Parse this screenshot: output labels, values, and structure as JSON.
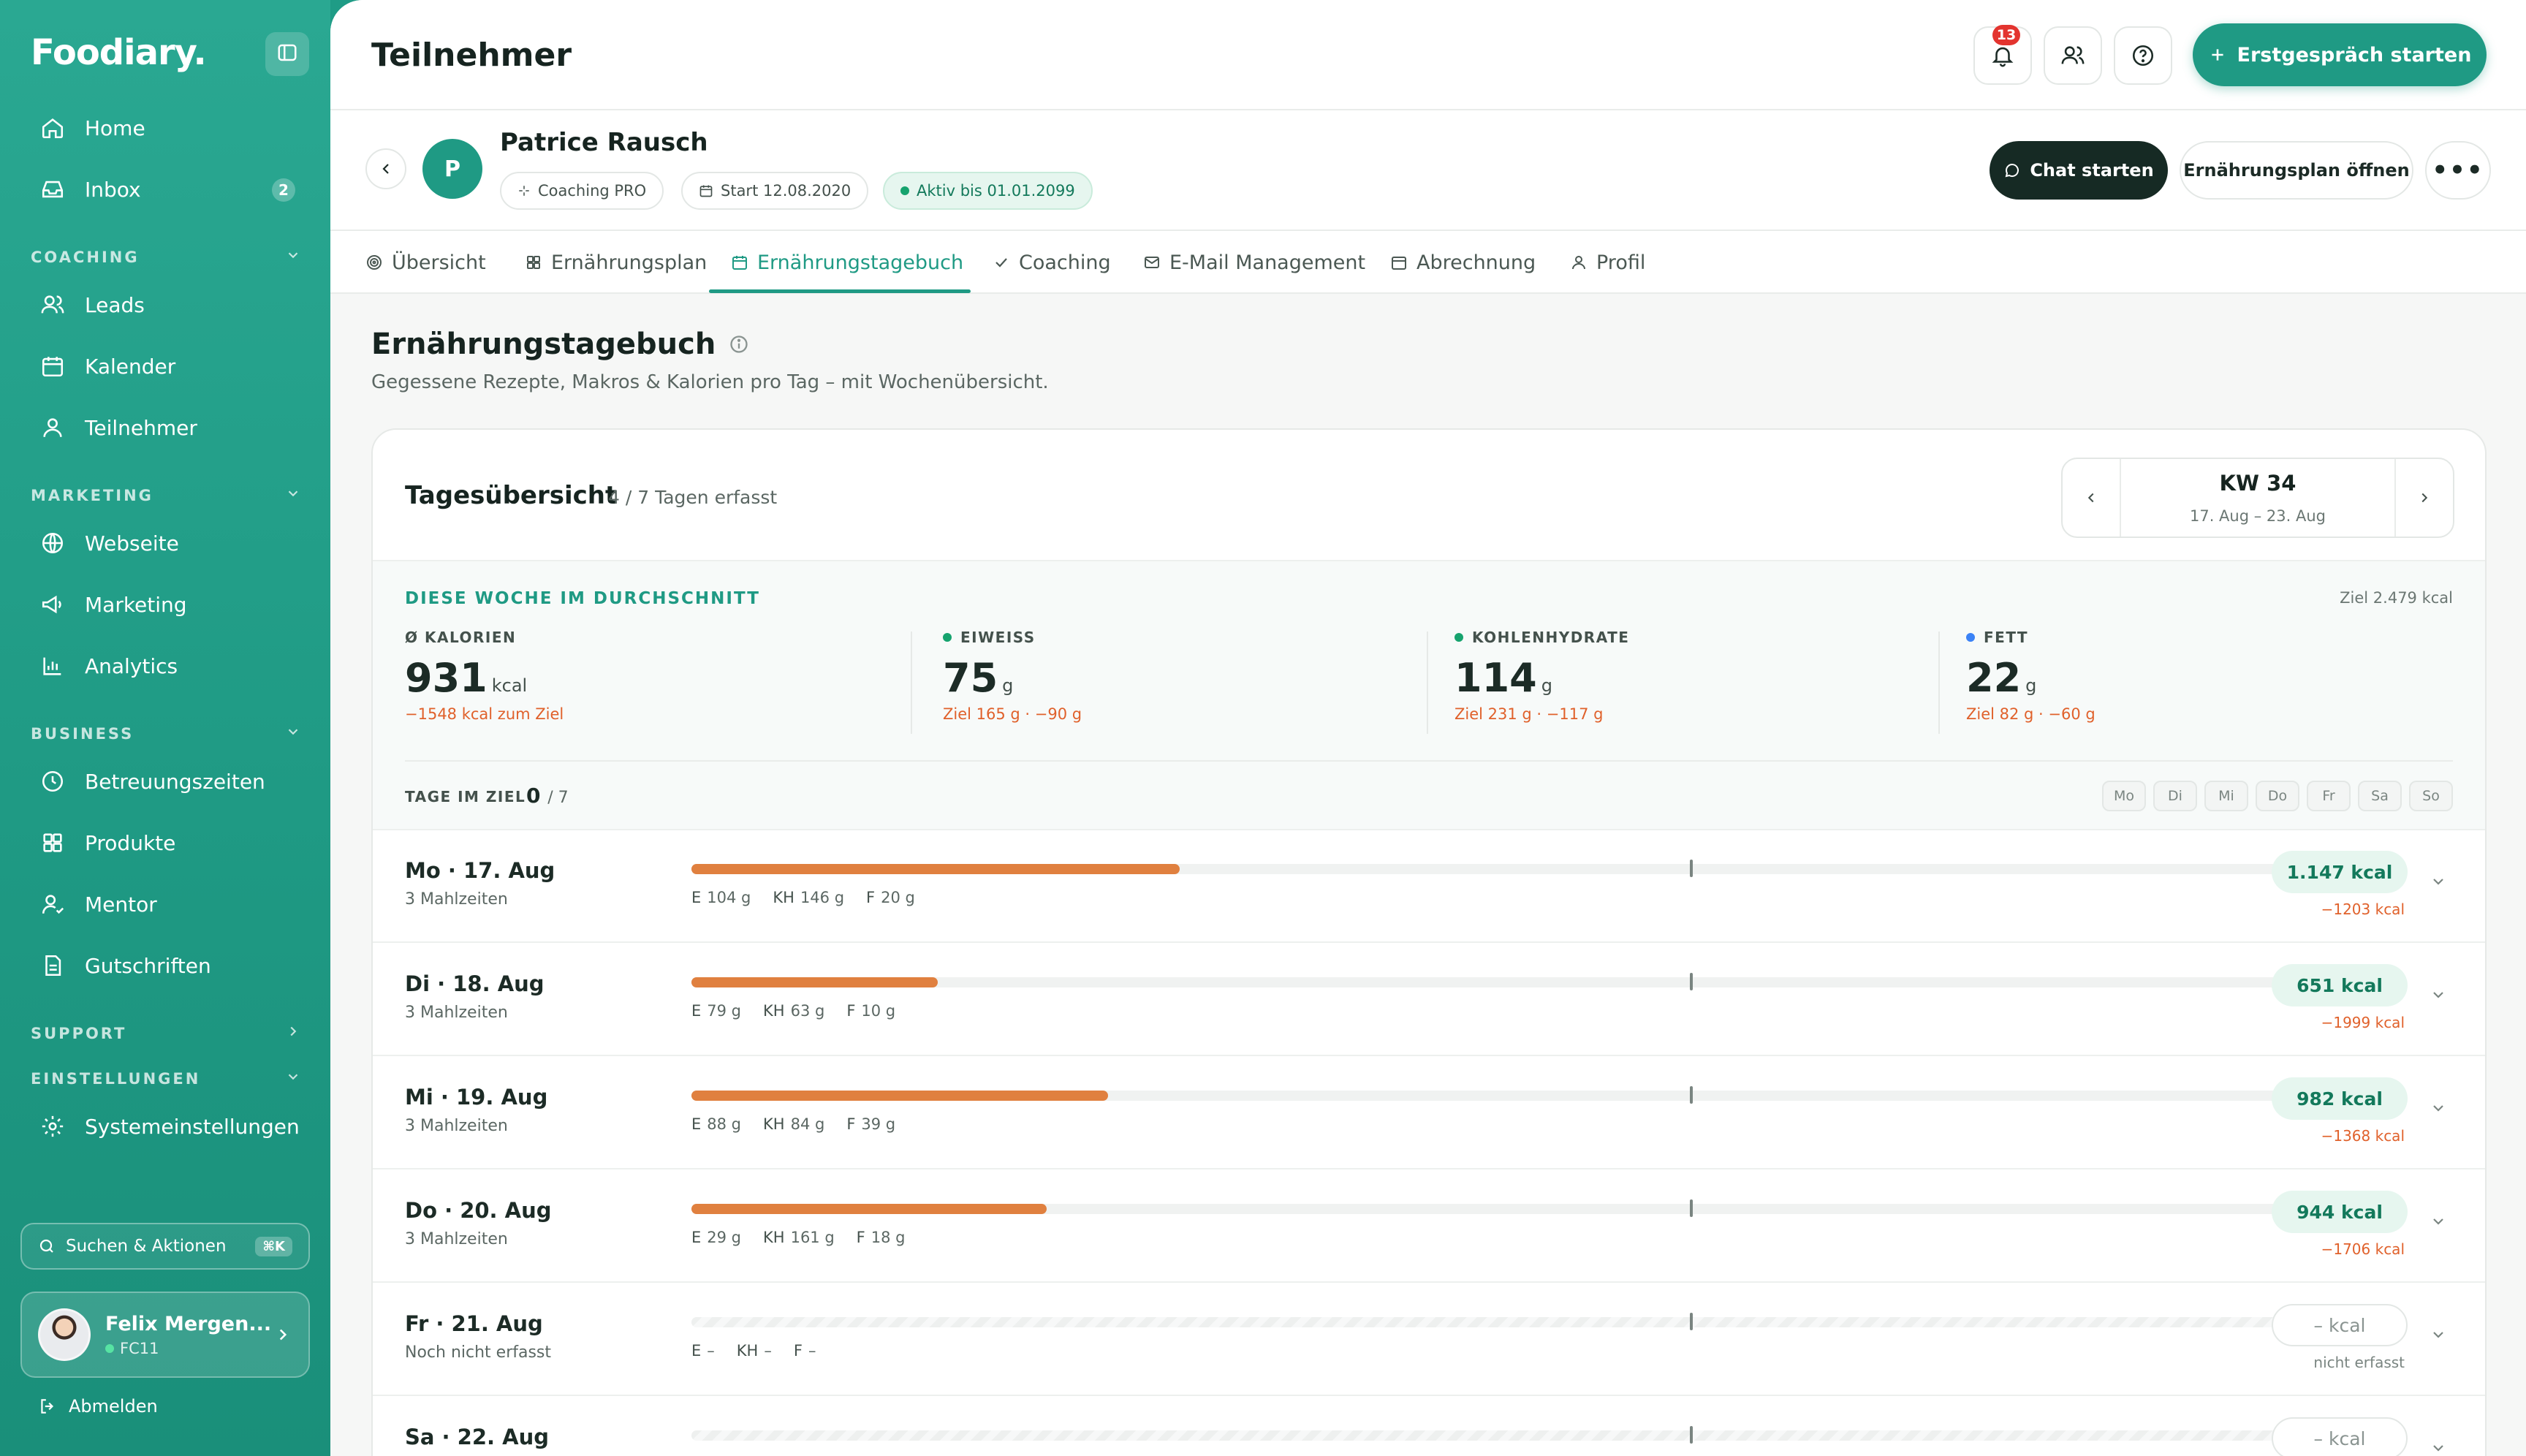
{
  "sidebar": {
    "brand": "Foodiary.",
    "nav_top": [
      {
        "label": "Home",
        "icon": "home-icon"
      },
      {
        "label": "Inbox",
        "icon": "inbox-icon",
        "badge": "2"
      }
    ],
    "sections": [
      {
        "title": "COACHING",
        "items": [
          {
            "label": "Leads",
            "icon": "users-icon"
          },
          {
            "label": "Kalender",
            "icon": "calendar-icon"
          },
          {
            "label": "Teilnehmer",
            "icon": "user-icon"
          }
        ]
      },
      {
        "title": "MARKETING",
        "items": [
          {
            "label": "Webseite",
            "icon": "globe-icon"
          },
          {
            "label": "Marketing",
            "icon": "megaphone-icon"
          },
          {
            "label": "Analytics",
            "icon": "bar-chart-icon"
          }
        ]
      },
      {
        "title": "BUSINESS",
        "items": [
          {
            "label": "Betreuungszeiten",
            "icon": "clock-icon"
          },
          {
            "label": "Produkte",
            "icon": "grid-icon"
          },
          {
            "label": "Mentor",
            "icon": "mentor-icon"
          },
          {
            "label": "Gutschriften",
            "icon": "document-icon"
          }
        ]
      },
      {
        "title": "SUPPORT",
        "items": []
      },
      {
        "title": "EINSTELLUNGEN",
        "items": [
          {
            "label": "Systemeinstellungen",
            "icon": "gear-icon"
          }
        ]
      }
    ],
    "search": {
      "label": "Suchen & Aktionen",
      "shortcut": "⌘K"
    },
    "user": {
      "name": "Felix Mergen...",
      "code": "FC11"
    },
    "logout": "Abmelden"
  },
  "header": {
    "title": "Teilnehmer",
    "notifications_count": "13",
    "primary_button": "Erstgespräch starten"
  },
  "client": {
    "initial": "P",
    "name": "Patrice Rausch",
    "chips": [
      "Coaching PRO",
      "Start 12.08.2020",
      "Aktiv bis 01.01.2099"
    ],
    "chat_button": "Chat starten",
    "plan_button": "Ernährungsplan öffnen"
  },
  "tabs": [
    {
      "label": "Übersicht",
      "icon": "target-icon"
    },
    {
      "label": "Ernährungsplan",
      "icon": "grid-icon"
    },
    {
      "label": "Ernährungstagebuch",
      "icon": "calendar-icon",
      "active": true
    },
    {
      "label": "Coaching",
      "icon": "check-icon"
    },
    {
      "label": "E-Mail Management",
      "icon": "mail-icon"
    },
    {
      "label": "Abrechnung",
      "icon": "calendar-icon"
    },
    {
      "label": "Profil",
      "icon": "user-icon"
    }
  ],
  "section": {
    "title": "Ernährungstagebuch",
    "subtitle": "Gegessene Rezepte, Makros & Kalorien pro Tag – mit Wochenübersicht."
  },
  "overview": {
    "title": "Tagesübersicht",
    "count": "4 / 7 Tagen erfasst",
    "week": "KW 34",
    "range": "17. Aug – 23. Aug",
    "avg_label": "DIESE WOCHE IM DURCHSCHNITT",
    "goal": "Ziel 2.479 kcal",
    "stats": [
      {
        "key": "Ø KALORIEN",
        "value": "931",
        "unit": "kcal",
        "note": "−1548 kcal zum Ziel",
        "dot": ""
      },
      {
        "key": "EIWEISS",
        "value": "75",
        "unit": "g",
        "note": "Ziel 165 g · −90 g",
        "dot": "#16a36e"
      },
      {
        "key": "KOHLENHYDRATE",
        "value": "114",
        "unit": "g",
        "note": "Ziel 231 g · −117 g",
        "dot": "#16a36e"
      },
      {
        "key": "FETT",
        "value": "22",
        "unit": "g",
        "note": "Ziel 82 g · −60 g",
        "dot": "#3b82f6"
      }
    ],
    "days_label": "TAGE IM ZIEL",
    "days_value": "0",
    "days_total": "/ 7",
    "weekdays": [
      "Mo",
      "Di",
      "Mi",
      "Do",
      "Fr",
      "Sa",
      "So"
    ]
  },
  "days": [
    {
      "title": "Mo · 17. Aug",
      "sub": "3 Mahlzeiten",
      "fill": 0.3066,
      "E": "104 g",
      "KH": "146 g",
      "F": "20 g",
      "kcal": "1.147 kcal",
      "diff": "−1203 kcal",
      "logged": true
    },
    {
      "title": "Di · 18. Aug",
      "sub": "3 Mahlzeiten",
      "fill": 0.1544,
      "E": "79 g",
      "KH": "63 g",
      "F": "10 g",
      "kcal": "651 kcal",
      "diff": "−1999 kcal",
      "logged": true
    },
    {
      "title": "Mi · 19. Aug",
      "sub": "3 Mahlzeiten",
      "fill": 0.2615,
      "E": "88 g",
      "KH": "84 g",
      "F": "39 g",
      "kcal": "982 kcal",
      "diff": "−1368 kcal",
      "logged": true
    },
    {
      "title": "Do · 20. Aug",
      "sub": "3 Mahlzeiten",
      "fill": 0.2229,
      "E": "29 g",
      "KH": "161 g",
      "F": "18 g",
      "kcal": "944 kcal",
      "diff": "−1706 kcal",
      "logged": true
    },
    {
      "title": "Fr · 21. Aug",
      "sub": "Noch nicht erfasst",
      "fill": 0,
      "E": "–",
      "KH": "–",
      "F": "–",
      "kcal": "– kcal",
      "diff": "nicht erfasst",
      "logged": false
    },
    {
      "title": "Sa · 22. Aug",
      "sub": "",
      "fill": 0,
      "E": "",
      "KH": "",
      "F": "",
      "kcal": "– kcal",
      "diff": "",
      "logged": false
    }
  ],
  "colors": {
    "brand": "#1f9a84",
    "accent_orange": "#e0803f",
    "negative": "#e0612b"
  }
}
